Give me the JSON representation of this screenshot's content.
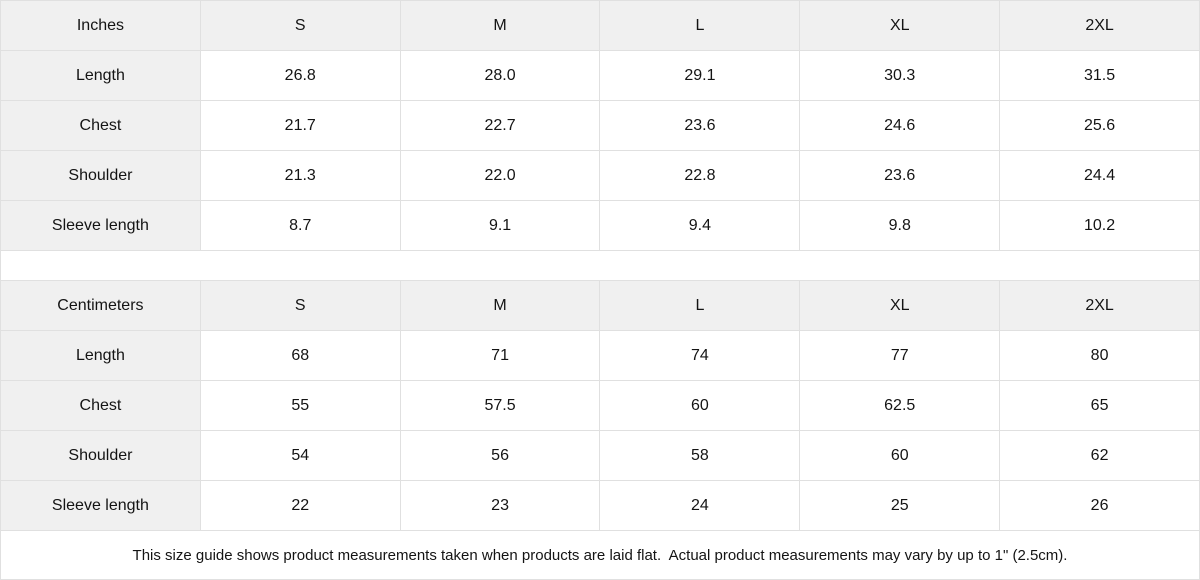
{
  "colors": {
    "header_fill": "#f0f0f0",
    "border": "#e0e0e0",
    "cell_bg": "#ffffff",
    "text": "#141414"
  },
  "tables": [
    {
      "unit_label": "Inches",
      "size_headers": [
        "S",
        "M",
        "L",
        "XL",
        "2XL"
      ],
      "rows": [
        {
          "label": "Length",
          "values": [
            "26.8",
            "28.0",
            "29.1",
            "30.3",
            "31.5"
          ]
        },
        {
          "label": "Chest",
          "values": [
            "21.7",
            "22.7",
            "23.6",
            "24.6",
            "25.6"
          ]
        },
        {
          "label": "Shoulder",
          "values": [
            "21.3",
            "22.0",
            "22.8",
            "23.6",
            "24.4"
          ]
        },
        {
          "label": "Sleeve length",
          "values": [
            "8.7",
            "9.1",
            "9.4",
            "9.8",
            "10.2"
          ]
        }
      ]
    },
    {
      "unit_label": "Centimeters",
      "size_headers": [
        "S",
        "M",
        "L",
        "XL",
        "2XL"
      ],
      "rows": [
        {
          "label": "Length",
          "values": [
            "68",
            "71",
            "74",
            "77",
            "80"
          ]
        },
        {
          "label": "Chest",
          "values": [
            "55",
            "57.5",
            "60",
            "62.5",
            "65"
          ]
        },
        {
          "label": "Shoulder",
          "values": [
            "54",
            "56",
            "58",
            "60",
            "62"
          ]
        },
        {
          "label": "Sleeve length",
          "values": [
            "22",
            "23",
            "24",
            "25",
            "26"
          ]
        }
      ]
    }
  ],
  "footer": {
    "note": "This size guide shows product measurements taken when products are laid flat.  Actual product measurements may vary by up to 1\" (2.5cm)."
  }
}
